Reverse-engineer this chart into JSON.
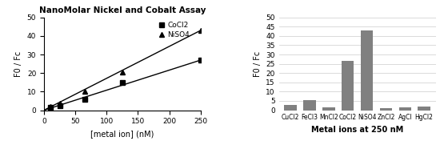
{
  "left": {
    "title": "NanoMolar Nickel and Cobalt Assay",
    "xlabel": "[metal ion] (nM)",
    "ylabel": "F0 / Fc",
    "ylim": [
      0,
      50
    ],
    "xlim": [
      0,
      250
    ],
    "yticks": [
      0,
      10,
      20,
      30,
      40,
      50
    ],
    "xticks": [
      0,
      50,
      100,
      150,
      200,
      250
    ],
    "CoCl2_x": [
      10,
      25,
      65,
      125,
      250
    ],
    "CoCl2_y": [
      1.5,
      2.5,
      6.0,
      15.0,
      27.0
    ],
    "NiSO4_x": [
      10,
      25,
      65,
      125,
      250
    ],
    "NiSO4_y": [
      2.0,
      3.5,
      10.0,
      20.5,
      43.0
    ],
    "CoCl2_fit_x": [
      0,
      250
    ],
    "CoCl2_fit_y": [
      0.0,
      27.0
    ],
    "NiSO4_fit_x": [
      0,
      250
    ],
    "NiSO4_fit_y": [
      0.0,
      43.0
    ],
    "legend_labels": [
      "CoCl2",
      "NiSO4"
    ],
    "marker_CoCl2": "s",
    "marker_NiSO4": "^",
    "line_color": "black",
    "marker_color": "black",
    "marker_facecolor": "black"
  },
  "right": {
    "xlabel": "Metal ions at 250 nM",
    "ylabel": "F0 / Fc",
    "ylim": [
      0,
      50
    ],
    "yticks": [
      0,
      5,
      10,
      15,
      20,
      25,
      30,
      35,
      40,
      45,
      50
    ],
    "categories": [
      "CuCl2",
      "FeCl3",
      "MnCl2",
      "CoCl2",
      "NiSO4",
      "ZnCl2",
      "AgCl",
      "HgCl2"
    ],
    "values": [
      3.0,
      5.5,
      1.5,
      26.5,
      43.0,
      1.0,
      1.5,
      1.8
    ],
    "bar_color": "#808080"
  }
}
